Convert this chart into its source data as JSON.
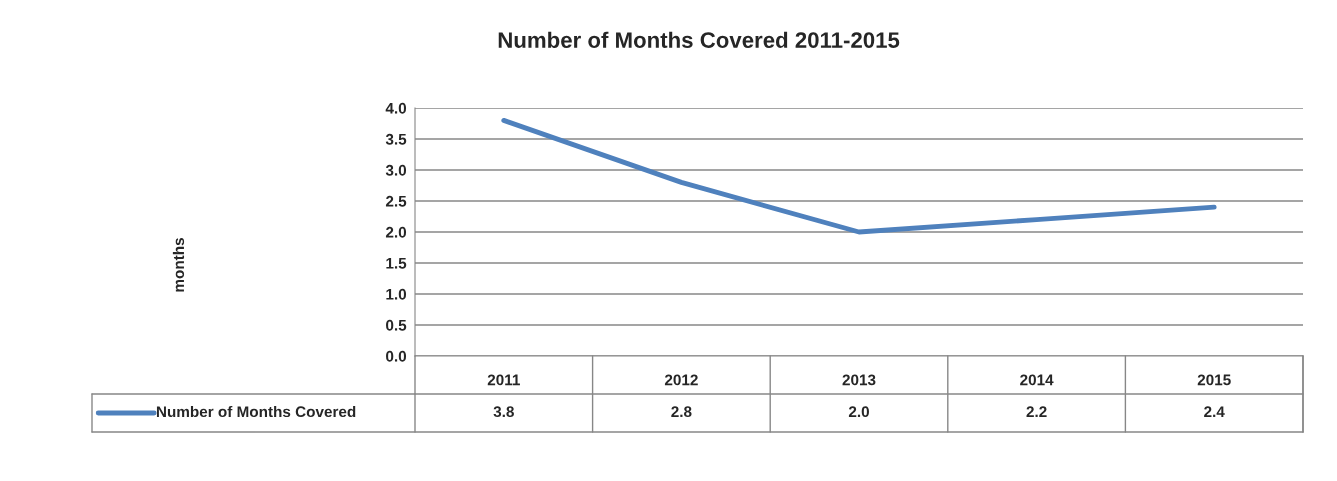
{
  "chart_data": {
    "type": "line",
    "title": "Number of Months Covered 2011-2015",
    "annotations": [
      "months"
    ],
    "categories": [
      "2011",
      "2012",
      "2013",
      "2014",
      "2015"
    ],
    "series": [
      {
        "name": "Number of Months Covered",
        "color": "#4f81bd",
        "values": [
          3.8,
          2.8,
          2.0,
          2.2,
          2.4
        ],
        "value_labels": [
          "3.8",
          "2.8",
          "2.0",
          "2.2",
          "2.4"
        ]
      }
    ],
    "ylim": [
      0,
      4
    ],
    "yticks": [
      {
        "value": 0,
        "label": "0.0"
      },
      {
        "value": 0.5,
        "label": "0.5"
      },
      {
        "value": 1,
        "label": "1.0"
      },
      {
        "value": 1.5,
        "label": "1.5"
      },
      {
        "value": 2,
        "label": "2.0"
      },
      {
        "value": 2.5,
        "label": "2.5"
      },
      {
        "value": 3,
        "label": "3.0"
      },
      {
        "value": 3.5,
        "label": "3.5"
      },
      {
        "value": 4,
        "label": "4.0"
      }
    ],
    "grid": "y",
    "legend": "bottom",
    "marker": "none",
    "line_style": "solid"
  }
}
